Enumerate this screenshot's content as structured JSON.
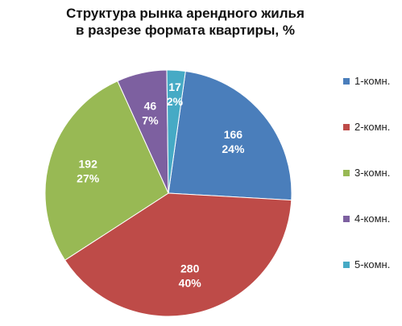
{
  "chart_data": {
    "type": "pie",
    "title_lines": [
      "Структура рынка арендного жилья",
      "в разрезе формата квартиры, %"
    ],
    "slices": [
      {
        "name": "1-комн.",
        "value": 166,
        "percent": "24%",
        "color": "#4a7ebb"
      },
      {
        "name": "2-комн.",
        "value": 280,
        "percent": "40%",
        "color": "#be4b48"
      },
      {
        "name": "3-комн.",
        "value": 192,
        "percent": "27%",
        "color": "#98b954"
      },
      {
        "name": "4-комн.",
        "value": 46,
        "percent": "7%",
        "color": "#7d60a0"
      },
      {
        "name": "5-комн.",
        "value": 17,
        "percent": "2%",
        "color": "#46aac5"
      }
    ],
    "legend_position": "right"
  }
}
